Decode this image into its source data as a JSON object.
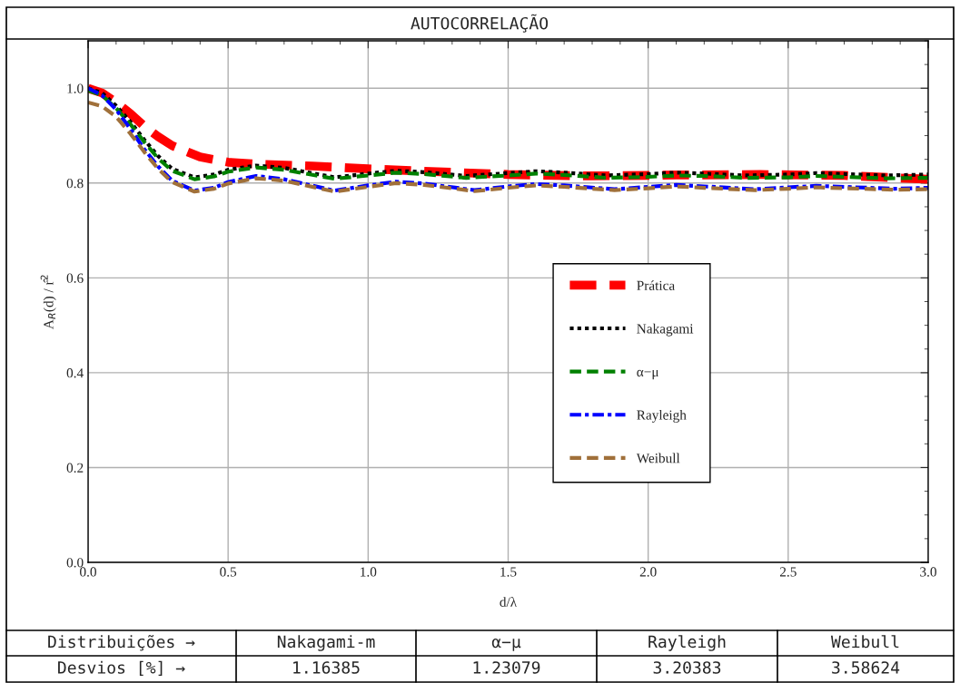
{
  "chart_data": {
    "type": "line",
    "title": "AUTOCORRELAÇÃO",
    "xlabel": "d/λ",
    "ylabel": "A$_{R}$(d) / r̂$^{2}$",
    "xlim": [
      0,
      3.0
    ],
    "ylim": [
      0,
      1.1
    ],
    "xticks": [
      {
        "value": 0,
        "label": "0.0"
      },
      0.5,
      {
        "value": 1,
        "label": "1.0"
      },
      1.5,
      {
        "value": 2,
        "label": "2.0"
      },
      2.5,
      {
        "value": 3,
        "label": "3.0"
      }
    ],
    "yticks": [
      {
        "value": 0,
        "label": "0.0"
      },
      0.2,
      0.4,
      0.6,
      0.8,
      {
        "value": 1,
        "label": "1.0"
      }
    ],
    "grid": true,
    "legend": "center",
    "series": [
      {
        "name": "Prática",
        "color": "#ff0000",
        "line_style": "dashed",
        "x": [
          0,
          0.05,
          0.1,
          0.15,
          0.2,
          0.25,
          0.3,
          0.4,
          0.5,
          0.6,
          0.8,
          1.0,
          1.2,
          1.5,
          1.8,
          2.1,
          2.4,
          2.7,
          3.0
        ],
        "values": [
          1.0,
          0.99,
          0.97,
          0.947,
          0.92,
          0.898,
          0.879,
          0.855,
          0.844,
          0.84,
          0.836,
          0.83,
          0.825,
          0.818,
          0.815,
          0.817,
          0.818,
          0.816,
          0.808
        ]
      },
      {
        "name": "Nakagami",
        "color": "#000000",
        "line_style": "dotted",
        "x": [
          0,
          0.05,
          0.1,
          0.15,
          0.2,
          0.25,
          0.3,
          0.38,
          0.45,
          0.5,
          0.6,
          0.7,
          0.88,
          1.0,
          1.1,
          1.2,
          1.35,
          1.5,
          1.6,
          1.7,
          1.85,
          2.0,
          2.1,
          2.2,
          2.35,
          2.5,
          2.6,
          2.7,
          2.85,
          3.0
        ],
        "values": [
          1.0,
          0.99,
          0.963,
          0.93,
          0.892,
          0.857,
          0.83,
          0.812,
          0.818,
          0.828,
          0.837,
          0.832,
          0.812,
          0.82,
          0.826,
          0.823,
          0.815,
          0.821,
          0.825,
          0.822,
          0.816,
          0.819,
          0.822,
          0.82,
          0.816,
          0.818,
          0.821,
          0.819,
          0.816,
          0.818
        ]
      },
      {
        "name": "α−μ",
        "color": "#008000",
        "line_style": "dashed",
        "x": [
          0,
          0.05,
          0.1,
          0.15,
          0.2,
          0.25,
          0.3,
          0.38,
          0.45,
          0.5,
          0.6,
          0.7,
          0.88,
          1.0,
          1.1,
          1.2,
          1.35,
          1.5,
          1.6,
          1.7,
          1.85,
          2.0,
          2.1,
          2.2,
          2.35,
          2.5,
          2.6,
          2.7,
          2.85,
          3.0
        ],
        "values": [
          0.995,
          0.985,
          0.958,
          0.925,
          0.887,
          0.852,
          0.826,
          0.808,
          0.814,
          0.824,
          0.833,
          0.828,
          0.809,
          0.816,
          0.822,
          0.819,
          0.811,
          0.816,
          0.82,
          0.817,
          0.811,
          0.813,
          0.816,
          0.815,
          0.811,
          0.812,
          0.815,
          0.813,
          0.81,
          0.811
        ]
      },
      {
        "name": "Rayleigh",
        "color": "#0000ff",
        "line_style": "dashdot",
        "x": [
          0,
          0.05,
          0.1,
          0.15,
          0.2,
          0.25,
          0.3,
          0.38,
          0.45,
          0.5,
          0.6,
          0.7,
          0.88,
          1.0,
          1.1,
          1.2,
          1.38,
          1.5,
          1.6,
          1.7,
          1.88,
          2.0,
          2.1,
          2.2,
          2.38,
          2.5,
          2.6,
          2.7,
          2.88,
          3.0
        ],
        "values": [
          1.0,
          0.985,
          0.955,
          0.915,
          0.872,
          0.835,
          0.805,
          0.784,
          0.79,
          0.802,
          0.815,
          0.808,
          0.784,
          0.795,
          0.803,
          0.799,
          0.785,
          0.793,
          0.798,
          0.795,
          0.787,
          0.792,
          0.796,
          0.793,
          0.787,
          0.791,
          0.794,
          0.792,
          0.788,
          0.79
        ]
      },
      {
        "name": "Weibull",
        "color": "#a0703a",
        "line_style": "dashed",
        "x": [
          0,
          0.05,
          0.1,
          0.15,
          0.2,
          0.25,
          0.3,
          0.38,
          0.45,
          0.5,
          0.6,
          0.7,
          0.88,
          1.0,
          1.1,
          1.2,
          1.38,
          1.5,
          1.6,
          1.7,
          1.88,
          2.0,
          2.1,
          2.2,
          2.38,
          2.5,
          2.6,
          2.7,
          2.88,
          3.0
        ],
        "values": [
          0.97,
          0.962,
          0.94,
          0.905,
          0.866,
          0.83,
          0.802,
          0.782,
          0.788,
          0.799,
          0.81,
          0.805,
          0.782,
          0.792,
          0.8,
          0.796,
          0.783,
          0.79,
          0.795,
          0.792,
          0.785,
          0.789,
          0.793,
          0.79,
          0.785,
          0.788,
          0.791,
          0.789,
          0.786,
          0.787
        ]
      }
    ],
    "annotations": [
      "Distribuições →",
      "Nakagami-m",
      "α−μ",
      "Rayleigh",
      "Weibull",
      "Desvios [%] →",
      "1.16385",
      "1.23079",
      "3.20383",
      "3.58624"
    ]
  }
}
